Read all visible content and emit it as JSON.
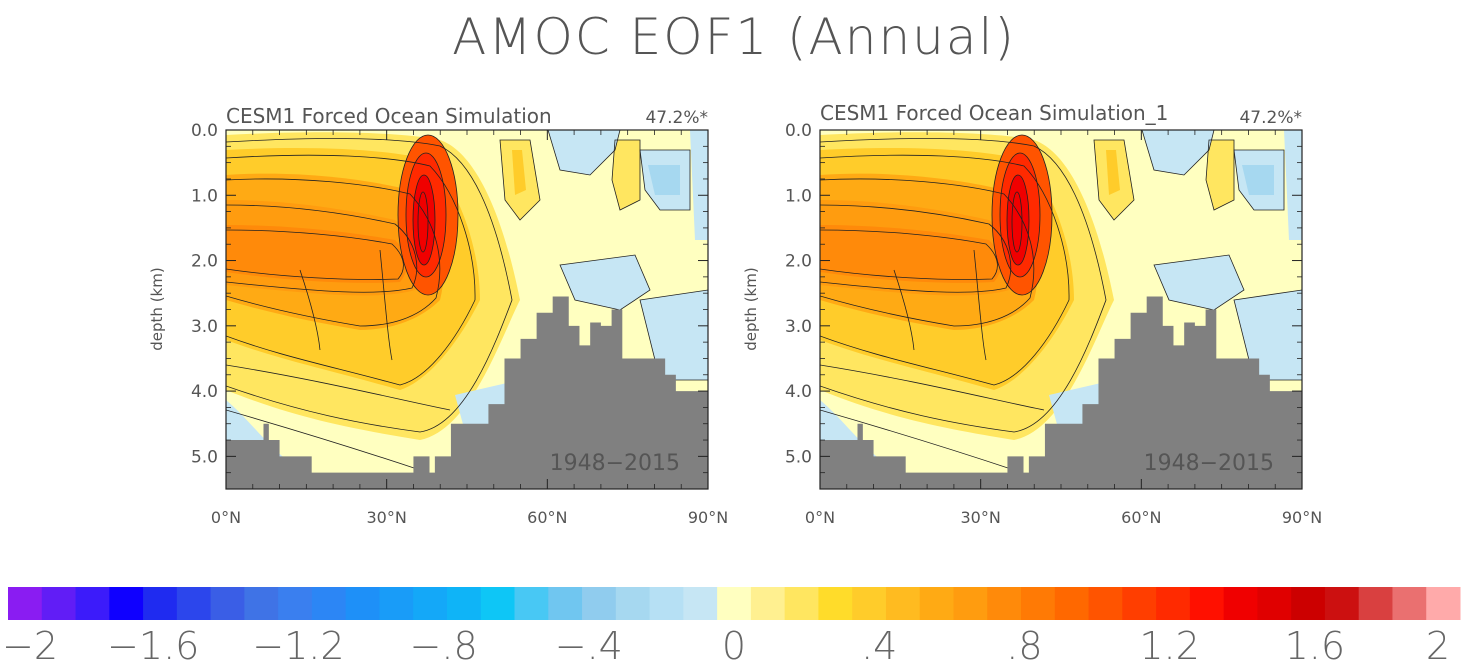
{
  "title": "AMOC EOF1 (Annual)",
  "chart_data": {
    "type": "heatmap",
    "panels": [
      {
        "title": "CESM1 Forced Ocean Simulation",
        "variance_label": "47.2%*",
        "period_label": "1948−2015",
        "ylabel": "depth (km)",
        "xlim": [
          0,
          90
        ],
        "ylim": [
          5.5,
          0.0
        ],
        "x_ticks": [
          "0°N",
          "30°N",
          "60°N",
          "90°N"
        ],
        "y_ticks": [
          "0.0",
          "1.0",
          "2.0",
          "3.0",
          "4.0",
          "5.0"
        ]
      },
      {
        "title": "CESM1 Forced Ocean Simulation_1",
        "variance_label": "47.2%*",
        "period_label": "1948−2015",
        "ylabel": "depth (km)",
        "xlim": [
          0,
          90
        ],
        "ylim": [
          5.5,
          0.0
        ],
        "x_ticks": [
          "0°N",
          "30°N",
          "60°N",
          "90°N"
        ],
        "y_ticks": [
          "0.0",
          "1.0",
          "2.0",
          "3.0",
          "4.0",
          "5.0"
        ]
      }
    ],
    "pattern": {
      "max_value": 1.4,
      "max_location": {
        "lat": 36,
        "depth_km": 1.5
      },
      "negative_regions_min": -0.2
    },
    "bathymetry": [
      {
        "lat": 0,
        "depth": 4.75
      },
      {
        "lat": 6,
        "depth": 4.75
      },
      {
        "lat": 7,
        "depth": 4.5
      },
      {
        "lat": 8,
        "depth": 4.75
      },
      {
        "lat": 10,
        "depth": 5.0
      },
      {
        "lat": 16,
        "depth": 5.25
      },
      {
        "lat": 30,
        "depth": 5.25
      },
      {
        "lat": 35,
        "depth": 5.0
      },
      {
        "lat": 38,
        "depth": 5.25
      },
      {
        "lat": 39,
        "depth": 5.0
      },
      {
        "lat": 42,
        "depth": 4.5
      },
      {
        "lat": 49,
        "depth": 4.2
      },
      {
        "lat": 52,
        "depth": 3.5
      },
      {
        "lat": 55,
        "depth": 3.2
      },
      {
        "lat": 58,
        "depth": 2.8
      },
      {
        "lat": 61,
        "depth": 2.55
      },
      {
        "lat": 64,
        "depth": 3.0
      },
      {
        "lat": 66,
        "depth": 3.3
      },
      {
        "lat": 68,
        "depth": 2.95
      },
      {
        "lat": 70,
        "depth": 3.0
      },
      {
        "lat": 72,
        "depth": 2.75
      },
      {
        "lat": 74,
        "depth": 3.5
      },
      {
        "lat": 82,
        "depth": 3.75
      },
      {
        "lat": 84,
        "depth": 4.0
      },
      {
        "lat": 90,
        "depth": 4.0
      }
    ],
    "colorbar": {
      "min": -2,
      "max": 2,
      "step": 0.1,
      "tick_labels": [
        "−2",
        "−1.6",
        "−1.2",
        "−.8",
        "−.4",
        "0",
        ".4",
        ".8",
        "1.2",
        "1.6",
        "2"
      ],
      "tick_values": [
        -2,
        -1.6,
        -1.2,
        -0.8,
        -0.4,
        0,
        0.4,
        0.8,
        1.2,
        1.6,
        2
      ],
      "colors": [
        "#8a1cf2",
        "#611df6",
        "#3c1bfa",
        "#0f00ff",
        "#1f2bf0",
        "#2c46ec",
        "#3a5ee6",
        "#3f73e6",
        "#3a7fef",
        "#2c86f5",
        "#1e90f8",
        "#199cf8",
        "#14a8f8",
        "#0fb4f7",
        "#0ec6f6",
        "#48c8f4",
        "#70c6f0",
        "#90ccee",
        "#a6d8f0",
        "#b6e0f4",
        "#c6e6f4",
        "#ffffc0",
        "#fff090",
        "#ffe660",
        "#ffdc2a",
        "#ffcc2a",
        "#ffbb20",
        "#ffaa14",
        "#ff9c0f",
        "#ff8a0a",
        "#ff7a05",
        "#ff6800",
        "#ff5400",
        "#ff3e00",
        "#ff2a00",
        "#ff1000",
        "#f00000",
        "#e00000",
        "#cc0000",
        "#cc1010",
        "#d94040",
        "#ea7070",
        "#ffaaaa"
      ]
    },
    "land_color": "#808080"
  }
}
